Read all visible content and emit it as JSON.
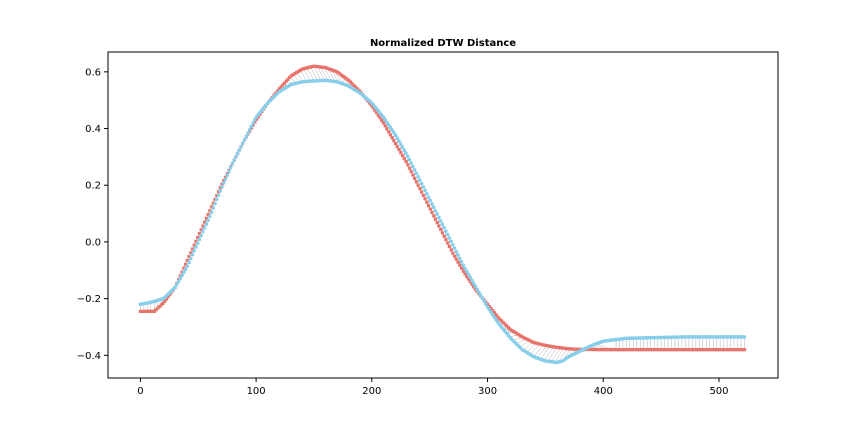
{
  "chart_data": {
    "type": "line",
    "title": "Normalized DTW Distance",
    "xlabel": "",
    "ylabel": "",
    "xlim": [
      -28,
      551
    ],
    "ylim": [
      -0.48,
      0.67
    ],
    "xticks": [
      0,
      100,
      200,
      300,
      400,
      500
    ],
    "yticks": [
      -0.4,
      -0.2,
      0.0,
      0.2,
      0.4,
      0.6
    ],
    "xtick_labels": [
      "0",
      "100",
      "200",
      "300",
      "400",
      "500"
    ],
    "ytick_labels": [
      "−0.4",
      "−0.2",
      "0.0",
      "0.2",
      "0.4",
      "0.6"
    ],
    "grid": false,
    "legend": "none",
    "series": [
      {
        "color": "#e8736b",
        "marker": "square",
        "x_start": 0,
        "x_end": 522,
        "points": [
          [
            0,
            -0.245
          ],
          [
            12,
            -0.245
          ],
          [
            20,
            -0.215
          ],
          [
            30,
            -0.16
          ],
          [
            40,
            -0.07
          ],
          [
            50,
            0.02
          ],
          [
            60,
            0.11
          ],
          [
            70,
            0.2
          ],
          [
            80,
            0.28
          ],
          [
            90,
            0.36
          ],
          [
            100,
            0.43
          ],
          [
            110,
            0.49
          ],
          [
            120,
            0.54
          ],
          [
            130,
            0.585
          ],
          [
            140,
            0.61
          ],
          [
            150,
            0.62
          ],
          [
            160,
            0.615
          ],
          [
            170,
            0.6
          ],
          [
            180,
            0.57
          ],
          [
            190,
            0.53
          ],
          [
            200,
            0.48
          ],
          [
            210,
            0.42
          ],
          [
            220,
            0.35
          ],
          [
            230,
            0.28
          ],
          [
            240,
            0.2
          ],
          [
            250,
            0.12
          ],
          [
            260,
            0.04
          ],
          [
            270,
            -0.04
          ],
          [
            280,
            -0.11
          ],
          [
            290,
            -0.17
          ],
          [
            300,
            -0.22
          ],
          [
            310,
            -0.27
          ],
          [
            320,
            -0.31
          ],
          [
            330,
            -0.335
          ],
          [
            340,
            -0.355
          ],
          [
            350,
            -0.365
          ],
          [
            360,
            -0.372
          ],
          [
            370,
            -0.377
          ],
          [
            380,
            -0.379
          ],
          [
            400,
            -0.38
          ],
          [
            450,
            -0.38
          ],
          [
            522,
            -0.38
          ]
        ]
      },
      {
        "color": "#87ceeb",
        "marker": "circle",
        "x_start": 0,
        "x_end": 522,
        "points": [
          [
            0,
            -0.22
          ],
          [
            10,
            -0.212
          ],
          [
            20,
            -0.2
          ],
          [
            30,
            -0.16
          ],
          [
            40,
            -0.09
          ],
          [
            50,
            0.0
          ],
          [
            60,
            0.09
          ],
          [
            70,
            0.19
          ],
          [
            80,
            0.28
          ],
          [
            90,
            0.36
          ],
          [
            100,
            0.44
          ],
          [
            110,
            0.49
          ],
          [
            120,
            0.53
          ],
          [
            130,
            0.555
          ],
          [
            140,
            0.565
          ],
          [
            150,
            0.568
          ],
          [
            160,
            0.57
          ],
          [
            170,
            0.565
          ],
          [
            180,
            0.55
          ],
          [
            190,
            0.525
          ],
          [
            200,
            0.49
          ],
          [
            210,
            0.44
          ],
          [
            220,
            0.38
          ],
          [
            230,
            0.31
          ],
          [
            240,
            0.23
          ],
          [
            250,
            0.15
          ],
          [
            260,
            0.07
          ],
          [
            270,
            -0.01
          ],
          [
            280,
            -0.09
          ],
          [
            290,
            -0.16
          ],
          [
            300,
            -0.23
          ],
          [
            310,
            -0.29
          ],
          [
            320,
            -0.34
          ],
          [
            330,
            -0.38
          ],
          [
            340,
            -0.405
          ],
          [
            350,
            -0.42
          ],
          [
            360,
            -0.425
          ],
          [
            365,
            -0.42
          ],
          [
            370,
            -0.405
          ],
          [
            380,
            -0.385
          ],
          [
            390,
            -0.365
          ],
          [
            400,
            -0.35
          ],
          [
            410,
            -0.345
          ],
          [
            420,
            -0.34
          ],
          [
            440,
            -0.338
          ],
          [
            470,
            -0.335
          ],
          [
            500,
            -0.335
          ],
          [
            522,
            -0.335
          ]
        ]
      }
    ],
    "alignment_lines": {
      "description": "DTW warping path connecting the two series",
      "color": "#555555"
    }
  }
}
